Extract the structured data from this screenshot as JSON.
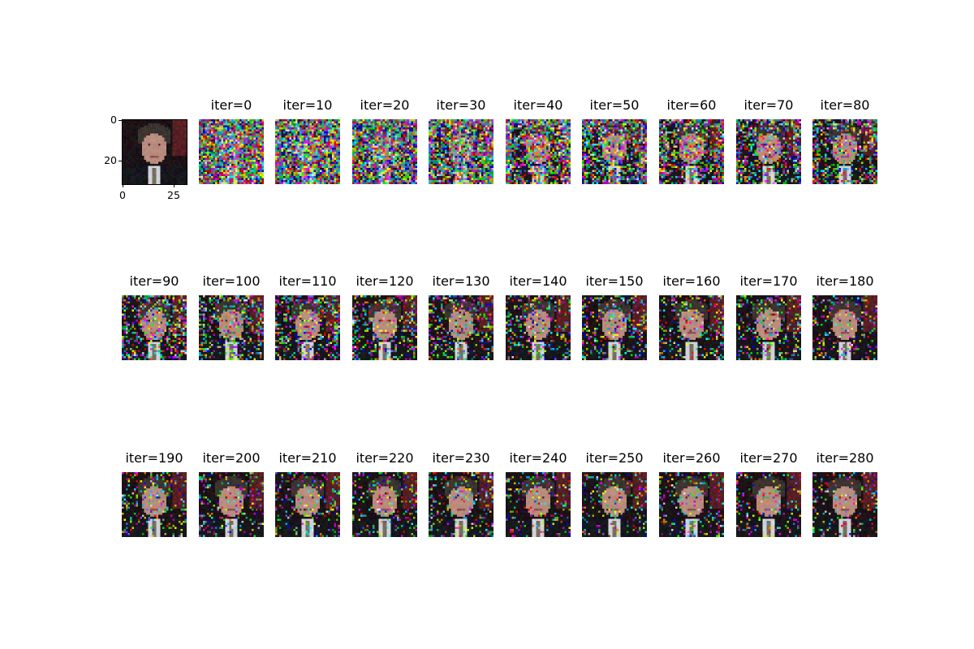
{
  "chart_data": {
    "type": "image_grid",
    "original": {
      "xticks": [
        "0",
        "25"
      ],
      "yticks": [
        "0",
        "20"
      ],
      "image_size": [
        32,
        32
      ]
    },
    "panels": [
      {
        "label": "iter=0",
        "noise": 1.0
      },
      {
        "label": "iter=10",
        "noise": 0.97
      },
      {
        "label": "iter=20",
        "noise": 0.9
      },
      {
        "label": "iter=30",
        "noise": 0.78
      },
      {
        "label": "iter=40",
        "noise": 0.66
      },
      {
        "label": "iter=50",
        "noise": 0.58
      },
      {
        "label": "iter=60",
        "noise": 0.5
      },
      {
        "label": "iter=70",
        "noise": 0.44
      },
      {
        "label": "iter=80",
        "noise": 0.4
      },
      {
        "label": "iter=90",
        "noise": 0.36
      },
      {
        "label": "iter=100",
        "noise": 0.33
      },
      {
        "label": "iter=110",
        "noise": 0.3
      },
      {
        "label": "iter=120",
        "noise": 0.28
      },
      {
        "label": "iter=130",
        "noise": 0.26
      },
      {
        "label": "iter=140",
        "noise": 0.24
      },
      {
        "label": "iter=150",
        "noise": 0.23
      },
      {
        "label": "iter=160",
        "noise": 0.22
      },
      {
        "label": "iter=170",
        "noise": 0.21
      },
      {
        "label": "iter=180",
        "noise": 0.2
      },
      {
        "label": "iter=190",
        "noise": 0.19
      },
      {
        "label": "iter=200",
        "noise": 0.18
      },
      {
        "label": "iter=210",
        "noise": 0.18
      },
      {
        "label": "iter=220",
        "noise": 0.17
      },
      {
        "label": "iter=230",
        "noise": 0.17
      },
      {
        "label": "iter=240",
        "noise": 0.16
      },
      {
        "label": "iter=250",
        "noise": 0.16
      },
      {
        "label": "iter=260",
        "noise": 0.16
      },
      {
        "label": "iter=270",
        "noise": 0.15
      },
      {
        "label": "iter=280",
        "noise": 0.15
      }
    ]
  }
}
